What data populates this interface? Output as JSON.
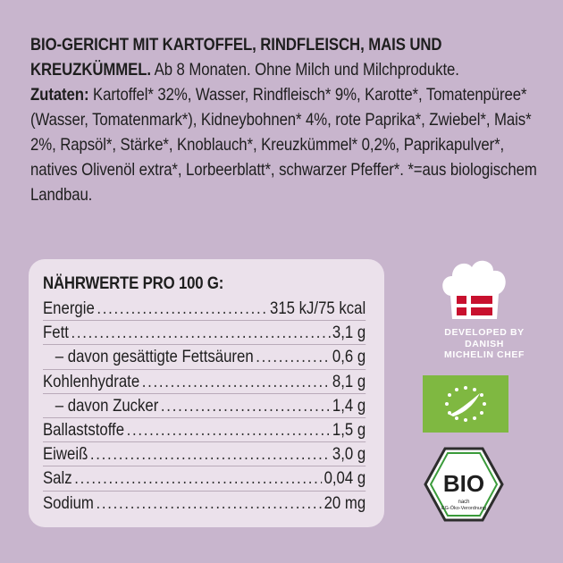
{
  "ingredients": {
    "title_bold": "BIO-GERICHT MIT KARTOFFEL, RINDFLEISCH, MAIS UND KREUZKÜMMEL.",
    "title_rest": " Ab 8 Monaten. Ohne Milch und Milchprodukte.",
    "zutaten_label": "Zutaten:",
    "zutaten_text": " Kartoffel* 32%, Wasser, Rindfleisch* 9%, Karotte*, Tomatenpüree* (Wasser, Tomatenmark*), Kidneybohnen* 4%, rote Paprika*, Zwiebel*, Mais* 2%, Rapsöl*, Stärke*, Knoblauch*, Kreuzkümmel* 0,2%, Paprikapulver*, natives Olivenöl extra*, Lorbeerblatt*, schwarzer Pfeffer*. *=aus biologischem Landbau."
  },
  "nutrition": {
    "title": "NÄHRWERTE PRO 100 G:",
    "rows": [
      {
        "label": "Energie",
        "value": "315 kJ/75 kcal"
      },
      {
        "label": "Fett",
        "value": "3,1 g"
      },
      {
        "label": "– davon gesättigte Fettsäuren",
        "value": "0,6 g"
      },
      {
        "label": "Kohlenhydrate",
        "value": "8,1 g"
      },
      {
        "label": "– davon Zucker",
        "value": "1,4 g"
      },
      {
        "label": "Ballaststoffe",
        "value": "1,5 g"
      },
      {
        "label": "Eiweiß",
        "value": "3,0 g"
      },
      {
        "label": "Salz",
        "value": "0,04 g"
      },
      {
        "label": "Sodium",
        "value": "20 mg"
      }
    ]
  },
  "badges": {
    "chef_line1": "DEVELOPED BY",
    "chef_line2": "DANISH",
    "chef_line3": "MICHELIN CHEF",
    "bio_word": "BIO",
    "bio_nach": "nach",
    "bio_regulation": "EG-Öko-Verordnung"
  },
  "colors": {
    "background": "#c8b5cd",
    "panel": "#ebe1eb",
    "eu_green": "#7fb841",
    "danish_red": "#c8102e"
  }
}
